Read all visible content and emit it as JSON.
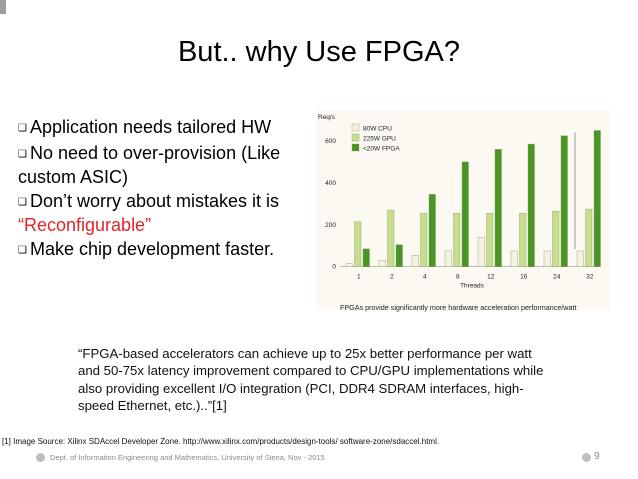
{
  "slide": {
    "title": "But.. why Use FPGA?",
    "bullets": [
      {
        "icon": "checkbox-bullet-icon",
        "text": "Application needs tailored HW"
      },
      {
        "icon": "checkbox-bullet-icon",
        "text": "No need to over-provision (Like custom ASIC)"
      },
      {
        "icon": "checkbox-bullet-icon",
        "text_before": "Don’t worry about mistakes it is ",
        "highlight": "“Reconfigurable”"
      },
      {
        "icon": "checkbox-bullet-icon",
        "text": "Make chip development faster."
      }
    ],
    "highlight_color": "#e0242a",
    "chart_caption": "FPGAs provide significantly more hardware acceleration performance/watt",
    "quote": "“FPGA-based accelerators can achieve up to 25x better performance per watt and 50-75x latency improvement compared to CPU/GPU implementations while also providing excellent I/O integration (PCI, DDR4 SDRAM interfaces, high-speed Ethernet, etc.)..”[1]",
    "source": "[1] Image Source: Xilinx SDAccel Developer Zone. http://www.xilinx.com/products/design-tools/ software-zone/sdaccel.html.",
    "footer_text": "Dept. of Information Engineering and Mathematics, University of Siena, Nov - 2015",
    "page_number": "9"
  },
  "chart_data": {
    "type": "bar",
    "ylabel": "Req/s",
    "xlabel": "Threads",
    "categories": [
      "1",
      "2",
      "4",
      "8",
      "12",
      "16",
      "24",
      "32"
    ],
    "yticks": [
      0,
      200,
      400,
      600
    ],
    "ylim": [
      -30,
      700
    ],
    "legend_position": "top-left",
    "series": [
      {
        "name": "80W CPU",
        "color": "#f3f4df",
        "values": [
          15,
          30,
          55,
          75,
          140,
          75,
          75,
          75
        ]
      },
      {
        "name": "225W GPU",
        "color": "#c7df8c",
        "values": [
          215,
          270,
          255,
          255,
          255,
          255,
          265,
          275
        ]
      },
      {
        "name": "<20W FPGA",
        "color": "#4a9624",
        "values": [
          85,
          105,
          345,
          500,
          560,
          585,
          625,
          650
        ]
      }
    ]
  }
}
